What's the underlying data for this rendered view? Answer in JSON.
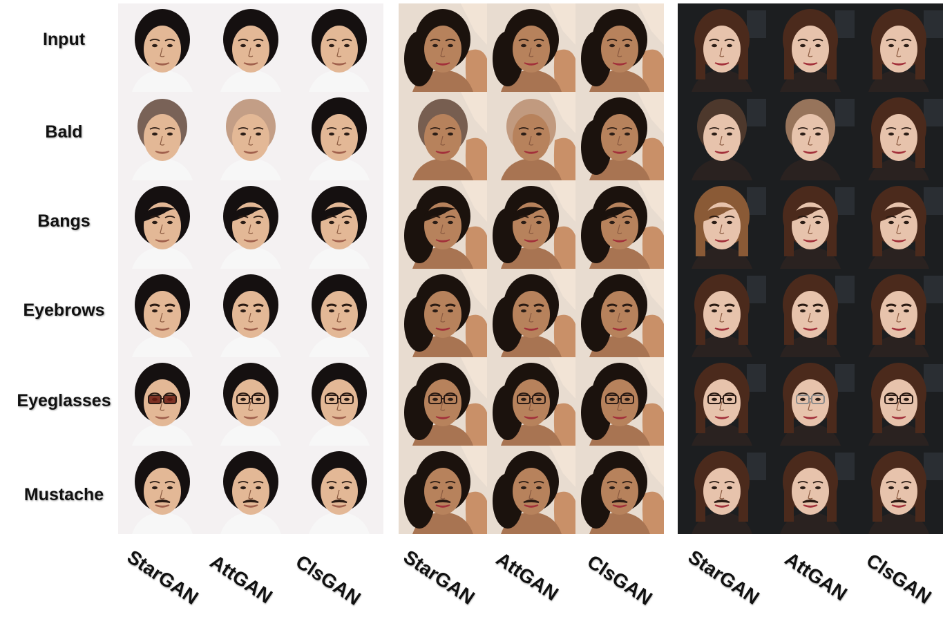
{
  "rows": [
    {
      "label": "Input"
    },
    {
      "label": "Bald"
    },
    {
      "label": "Bangs"
    },
    {
      "label": "Eyebrows"
    },
    {
      "label": "Eyeglasses"
    },
    {
      "label": "Mustache"
    }
  ],
  "groups": [
    {
      "subject": "man-dark-hair-light-background",
      "background": "#f4f1f2",
      "columns": [
        {
          "label": "StarGAN"
        },
        {
          "label": "AttGAN"
        },
        {
          "label": "ClsGAN"
        }
      ]
    },
    {
      "subject": "woman-curly-hair-light-background",
      "background": "#e8dcd0",
      "columns": [
        {
          "label": "StarGAN"
        },
        {
          "label": "AttGAN"
        },
        {
          "label": "ClsGAN"
        }
      ]
    },
    {
      "subject": "woman-auburn-hair-dark-background",
      "background": "#1c1e20",
      "columns": [
        {
          "label": "StarGAN"
        },
        {
          "label": "AttGAN"
        },
        {
          "label": "ClsGAN"
        }
      ]
    }
  ]
}
